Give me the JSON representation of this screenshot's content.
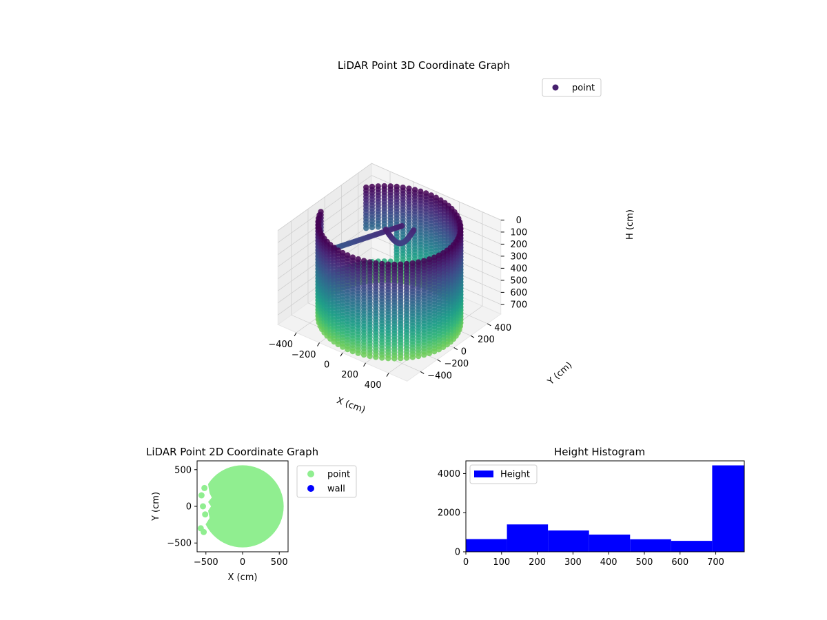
{
  "chart_data": [
    {
      "type": "scatter3d",
      "title": "LiDAR Point 3D Coordinate Graph",
      "legend": {
        "entries": [
          "point"
        ],
        "placement": "upper-right"
      },
      "xlabel": "X (cm)",
      "ylabel": "Y (cm)",
      "zlabel": "H (cm)",
      "xticks": [
        -400,
        -200,
        0,
        200,
        400
      ],
      "yticks": [
        -400,
        -200,
        0,
        200,
        400
      ],
      "zticks": [
        0,
        100,
        200,
        300,
        400,
        500,
        600,
        700
      ],
      "xlim": [
        -560,
        560
      ],
      "ylim": [
        -560,
        560
      ],
      "zlim": [
        780,
        0
      ],
      "colormap": "viridis",
      "shape": "cylindrical wall of points, radius ≈ 500 cm, heights 0–780 cm, with a gap on the left side and a branch structure near the top",
      "grid": true
    },
    {
      "type": "scatter",
      "title": "LiDAR Point 2D Coordinate Graph",
      "xlabel": "X (cm)",
      "ylabel": "Y (cm)",
      "xticks": [
        -500,
        0,
        500
      ],
      "yticks": [
        500,
        0,
        -500
      ],
      "xlim": [
        -620,
        620
      ],
      "ylim": [
        -620,
        620
      ],
      "series": [
        {
          "name": "point",
          "color": "#90ee90",
          "shape": "filled disk radius ≈ 560 cm"
        },
        {
          "name": "wall",
          "color": "#0000ff",
          "points": []
        }
      ],
      "legend": {
        "entries": [
          "point",
          "wall"
        ],
        "placement": "outside-right"
      }
    },
    {
      "type": "histogram",
      "title": "Height Histogram",
      "bin_edges": [
        0,
        115,
        230,
        345,
        460,
        575,
        690,
        780
      ],
      "values": [
        650,
        1400,
        1090,
        880,
        640,
        560,
        4420
      ],
      "xticks": [
        0,
        100,
        200,
        300,
        400,
        500,
        600,
        700
      ],
      "yticks": [
        0,
        2000,
        4000
      ],
      "xlim": [
        0,
        780
      ],
      "ylim": [
        0,
        4650
      ],
      "color": "#0000ff",
      "legend": {
        "entries": [
          "Height"
        ],
        "placement": "upper-left"
      }
    }
  ]
}
